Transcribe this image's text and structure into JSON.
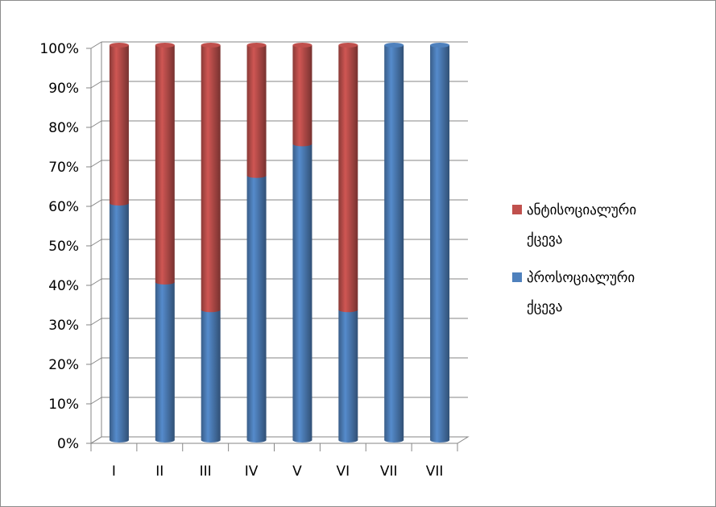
{
  "chart_data": {
    "type": "bar",
    "stacked": true,
    "three_d": true,
    "categories": [
      "I",
      "II",
      "III",
      "IV",
      "V",
      "VI",
      "VII",
      "VII"
    ],
    "series": [
      {
        "name": "პროსოციალური ქცევა",
        "color": "#4f81bd",
        "values": [
          60,
          40,
          33,
          67,
          75,
          33,
          100,
          100
        ]
      },
      {
        "name": "ანტისოციალური ქცევა",
        "color": "#c0504d",
        "values": [
          40,
          60,
          67,
          33,
          25,
          67,
          0,
          0
        ]
      }
    ],
    "yticks": [
      "0%",
      "10%",
      "20%",
      "30%",
      "40%",
      "50%",
      "60%",
      "70%",
      "80%",
      "90%",
      "100%"
    ],
    "ylim": [
      0,
      100
    ],
    "grid": true,
    "legend_position": "right",
    "legend": [
      {
        "line1": "ანტისოციალური",
        "line2": "ქცევა",
        "color": "#c0504d"
      },
      {
        "line1": "პროსოციალური",
        "line2": "ქცევა",
        "color": "#4f81bd"
      }
    ]
  }
}
